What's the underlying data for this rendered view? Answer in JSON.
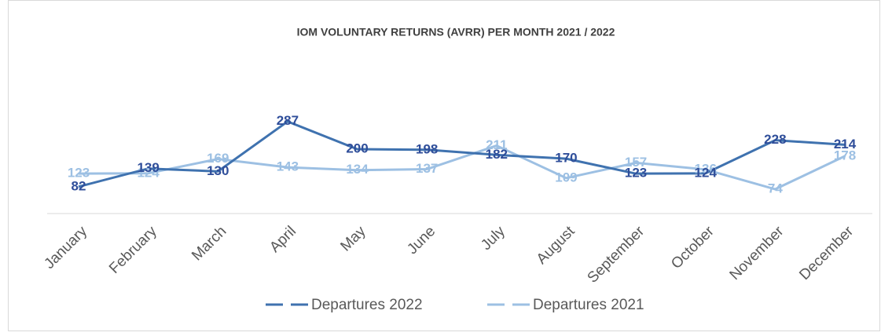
{
  "chart_data": {
    "type": "line",
    "title": "IOM VOLUNTARY RETURNS (AVRR) PER MONTH 2021 / 2022",
    "categories": [
      "January",
      "February",
      "March",
      "April",
      "May",
      "June",
      "July",
      "August",
      "September",
      "October",
      "November",
      "December"
    ],
    "series": [
      {
        "name": "Departures 2022",
        "color": "#3f72af",
        "label_color": "#2f4e9a",
        "values": [
          82,
          139,
          130,
          287,
          200,
          198,
          182,
          170,
          123,
          124,
          228,
          214
        ]
      },
      {
        "name": "Departures 2021",
        "color": "#9dc0e3",
        "label_color": "#9dc0e3",
        "values": [
          123,
          124,
          169,
          143,
          134,
          137,
          211,
          109,
          157,
          136,
          74,
          178
        ]
      }
    ],
    "legend": "bottom"
  }
}
